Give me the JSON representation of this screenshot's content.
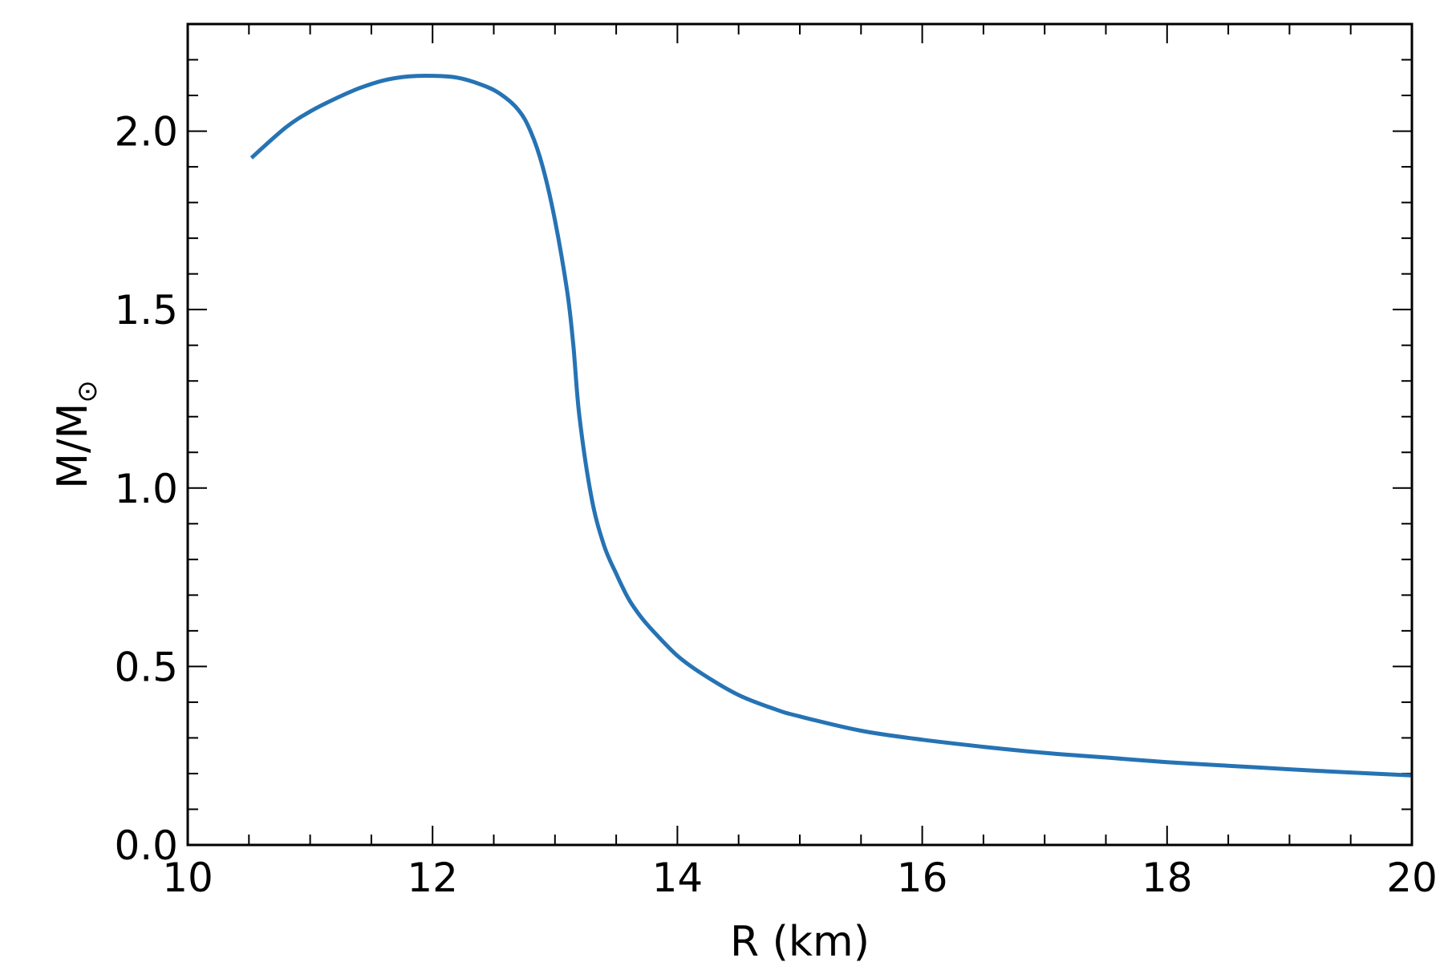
{
  "chart_data": {
    "type": "line",
    "xlabel": "R (km)",
    "ylabel_main": "M/M",
    "ylabel_sub": "⊙",
    "xlim": [
      10,
      20
    ],
    "ylim": [
      0.0,
      2.3
    ],
    "x_ticks": [
      10,
      12,
      14,
      16,
      18,
      20
    ],
    "x_tick_labels": [
      "10",
      "12",
      "14",
      "16",
      "18",
      "20"
    ],
    "x_minor_step": 0.5,
    "y_ticks": [
      0.0,
      0.5,
      1.0,
      1.5,
      2.0
    ],
    "y_tick_labels": [
      "0.0",
      "0.5",
      "1.0",
      "1.5",
      "2.0"
    ],
    "y_minor_step": 0.1,
    "grid": false,
    "series": [
      {
        "color": "#2673b4",
        "x": [
          10.52,
          10.8,
          11.0,
          11.2,
          11.4,
          11.6,
          11.8,
          12.0,
          12.2,
          12.4,
          12.55,
          12.7,
          12.8,
          12.9,
          13.0,
          13.1,
          13.15,
          13.2,
          13.3,
          13.4,
          13.5,
          13.6,
          13.7,
          13.8,
          14.0,
          14.2,
          14.5,
          14.8,
          15.0,
          15.5,
          16.0,
          16.5,
          17.0,
          17.5,
          18.0,
          18.5,
          19.0,
          19.5,
          20.0
        ],
        "y": [
          1.925,
          2.01,
          2.055,
          2.09,
          2.12,
          2.142,
          2.153,
          2.155,
          2.15,
          2.13,
          2.105,
          2.06,
          2.0,
          1.9,
          1.75,
          1.55,
          1.4,
          1.2,
          0.97,
          0.84,
          0.76,
          0.69,
          0.64,
          0.6,
          0.53,
          0.48,
          0.42,
          0.38,
          0.36,
          0.32,
          0.295,
          0.275,
          0.258,
          0.245,
          0.232,
          0.222,
          0.212,
          0.203,
          0.195
        ]
      }
    ]
  }
}
